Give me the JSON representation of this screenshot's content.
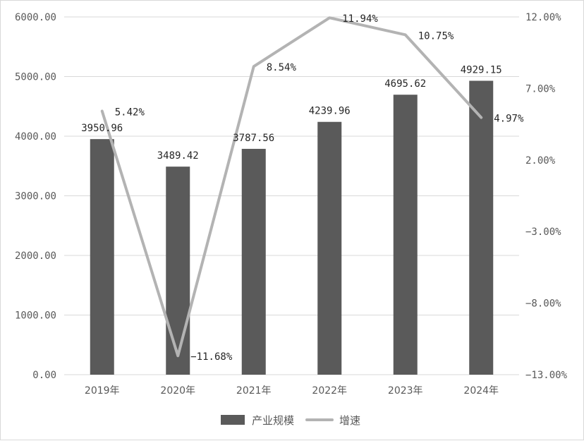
{
  "chart_data": {
    "type": "bar",
    "categories": [
      "2019年",
      "2020年",
      "2021年",
      "2022年",
      "2023年",
      "2024年"
    ],
    "series": [
      {
        "name": "产业规模",
        "type": "bar",
        "axis": "left",
        "values": [
          3950.96,
          3489.42,
          3787.56,
          4239.96,
          4695.62,
          4929.15
        ],
        "labels": [
          "3950.96",
          "3489.42",
          "3787.56",
          "4239.96",
          "4695.62",
          "4929.15"
        ],
        "color": "#5a5a5a"
      },
      {
        "name": "增速",
        "type": "line",
        "axis": "right",
        "values": [
          5.42,
          -11.68,
          8.54,
          11.94,
          10.75,
          4.97
        ],
        "labels": [
          "5.42%",
          "−11.68%",
          "8.54%",
          "11.94%",
          "10.75%",
          "4.97%"
        ],
        "color": "#b3b3b3"
      }
    ],
    "y_left": {
      "min": 0,
      "max": 6000,
      "ticks": [
        0,
        1000,
        2000,
        3000,
        4000,
        5000,
        6000
      ],
      "tick_labels": [
        "0.00",
        "1000.00",
        "2000.00",
        "3000.00",
        "4000.00",
        "5000.00",
        "6000.00"
      ]
    },
    "y_right": {
      "min": -13,
      "max": 12,
      "ticks": [
        -13,
        -8,
        -3,
        2,
        7,
        12
      ],
      "tick_labels": [
        "−13.00%",
        "−8.00%",
        "−3.00%",
        "2.00%",
        "7.00%",
        "12.00%"
      ]
    },
    "grid": true,
    "legend_position": "bottom-center",
    "title": "",
    "xlabel": "",
    "ylabel": ""
  }
}
